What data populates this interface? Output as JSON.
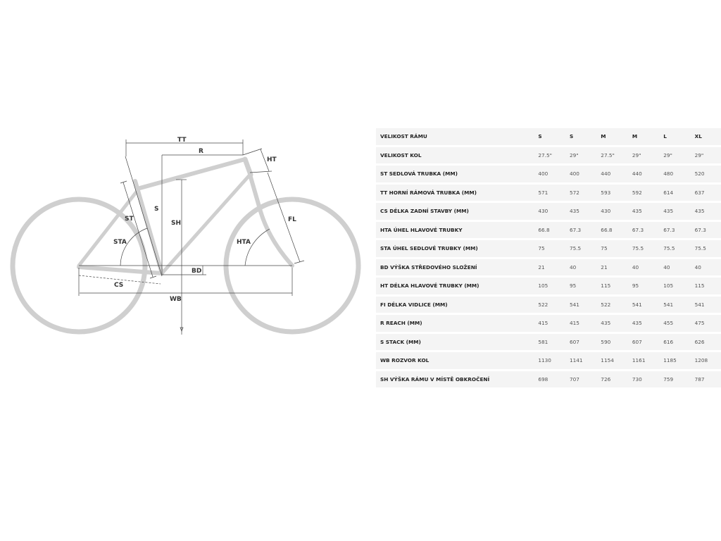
{
  "diagram": {
    "labels": {
      "tt": "TT",
      "r": "R",
      "ht": "HT",
      "s": "S",
      "sh": "SH",
      "st": "ST",
      "sta": "STA",
      "fl": "FL",
      "hta": "HTA",
      "bd": "BD",
      "cs": "CS",
      "wb": "WB"
    },
    "colors": {
      "frame": "#cfcfcf",
      "dimension": "#444444"
    }
  },
  "table": {
    "header": {
      "label": "VELIKOST RÁMU",
      "values": [
        "S",
        "S",
        "M",
        "M",
        "L",
        "XL"
      ]
    },
    "rows": [
      {
        "label": "VELIKOST KOL",
        "values": [
          "27.5\"",
          "29\"",
          "27.5\"",
          "29\"",
          "29\"",
          "29\""
        ]
      },
      {
        "label": "ST SEDLOVÁ TRUBKA (MM)",
        "values": [
          "400",
          "400",
          "440",
          "440",
          "480",
          "520"
        ]
      },
      {
        "label": "TT HORNÍ RÁMOVÁ TRUBKA (MM)",
        "values": [
          "571",
          "572",
          "593",
          "592",
          "614",
          "637"
        ]
      },
      {
        "label": "CS DÉLKA ZADNÍ STAVBY (MM)",
        "values": [
          "430",
          "435",
          "430",
          "435",
          "435",
          "435"
        ]
      },
      {
        "label": "HTA ÚHEL HLAVOVÉ TRUBKY",
        "values": [
          "66.8",
          "67.3",
          "66.8",
          "67.3",
          "67.3",
          "67.3"
        ]
      },
      {
        "label": "STA ÚHEL SEDLOVÉ TRUBKY (MM)",
        "values": [
          "75",
          "75.5",
          "75",
          "75.5",
          "75.5",
          "75.5"
        ]
      },
      {
        "label": "BD VÝŠKA STŘEDOVÉHO SLOŽENÍ",
        "values": [
          "21",
          "40",
          "21",
          "40",
          "40",
          "40"
        ]
      },
      {
        "label": "HT DÉLKA HLAVOVÉ TRUBKY (MM)",
        "values": [
          "105",
          "95",
          "115",
          "95",
          "105",
          "115"
        ]
      },
      {
        "label": "FI DÉLKA VIDLICE (MM)",
        "values": [
          "522",
          "541",
          "522",
          "541",
          "541",
          "541"
        ]
      },
      {
        "label": "R REACH (MM)",
        "values": [
          "415",
          "415",
          "435",
          "435",
          "455",
          "475"
        ]
      },
      {
        "label": "S STACK (MM)",
        "values": [
          "581",
          "607",
          "590",
          "607",
          "616",
          "626"
        ]
      },
      {
        "label": "WB ROZVOR KOL",
        "values": [
          "1130",
          "1141",
          "1154",
          "1161",
          "1185",
          "1208"
        ]
      },
      {
        "label": "SH VÝŠKA RÁMU V MÍSTĚ OBKROČENÍ",
        "values": [
          "698",
          "707",
          "726",
          "730",
          "759",
          "787"
        ]
      }
    ]
  }
}
